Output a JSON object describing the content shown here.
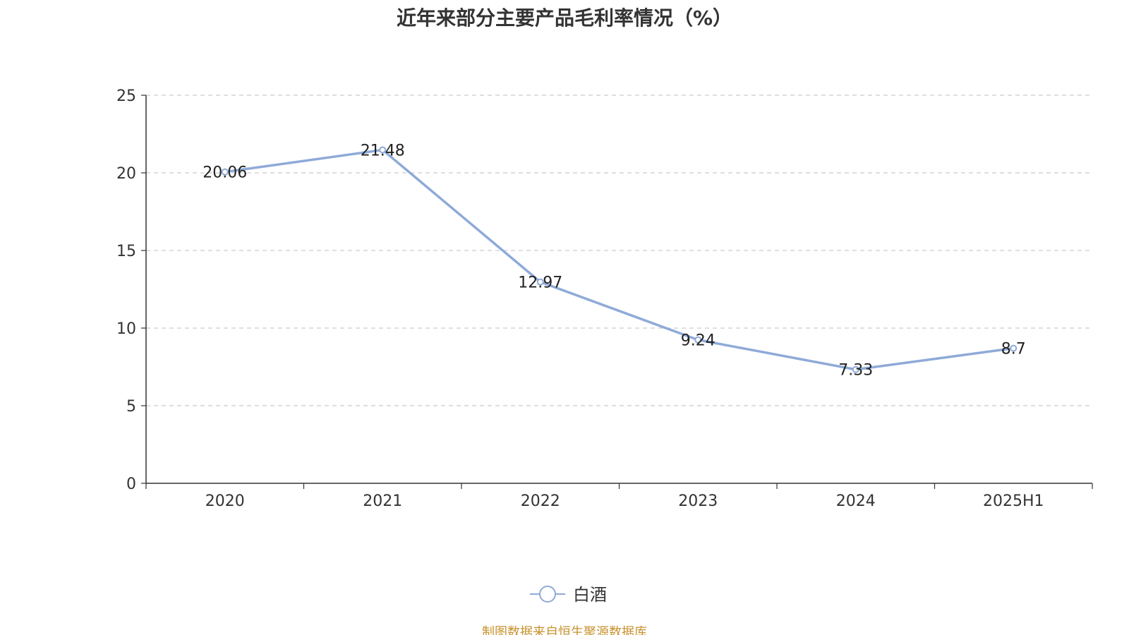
{
  "chart_data": {
    "type": "line",
    "title": "近年来部分主要产品毛利率情况（%）",
    "categories": [
      "2020",
      "2021",
      "2022",
      "2023",
      "2024",
      "2025H1"
    ],
    "series": [
      {
        "name": "白酒",
        "values": [
          20.06,
          21.48,
          12.97,
          9.24,
          7.33,
          8.7
        ],
        "color": "#8eaad8"
      }
    ],
    "data_labels": [
      "20.06",
      "21.48",
      "12.97",
      "9.24",
      "7.33",
      "8.7"
    ],
    "y_ticks": [
      0,
      5,
      10,
      15,
      20,
      25
    ],
    "ylim": [
      0,
      25
    ],
    "grid": "horizontal dashed",
    "legend": "bottom-center",
    "xlabel": "",
    "ylabel": ""
  },
  "source": "制图数据来自恒生聚源数据库"
}
